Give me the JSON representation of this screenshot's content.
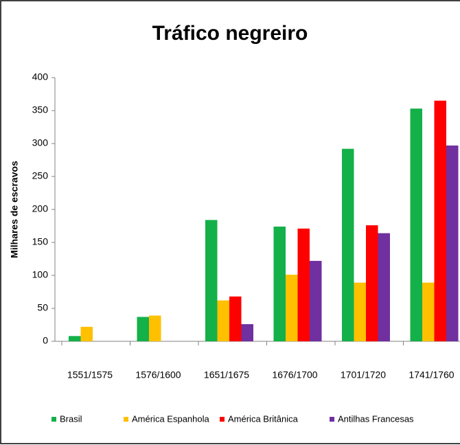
{
  "chart_data": {
    "type": "bar",
    "title": "Tráfico negreiro",
    "y_label": "Milhares de escravos",
    "categories": [
      "1551/1575",
      "1576/1600",
      "1651/1675",
      "1676/1700",
      "1701/1720",
      "1741/1760"
    ],
    "series": [
      {
        "name": "Brasil",
        "color": "#14b04a",
        "values": [
          8,
          37,
          184,
          174,
          292,
          353
        ]
      },
      {
        "name": "América Espanhola",
        "color": "#ffc000",
        "values": [
          22,
          39,
          62,
          101,
          89,
          89
        ]
      },
      {
        "name": "América Britânica",
        "color": "#ff0000",
        "values": [
          0,
          0,
          68,
          171,
          176,
          365
        ]
      },
      {
        "name": "Antilhas Francesas",
        "color": "#7030a0",
        "values": [
          0,
          0,
          26,
          122,
          164,
          297
        ]
      }
    ],
    "ylim": [
      0,
      400
    ],
    "yticks": [
      0,
      50,
      100,
      150,
      200,
      250,
      300,
      350,
      400
    ]
  }
}
